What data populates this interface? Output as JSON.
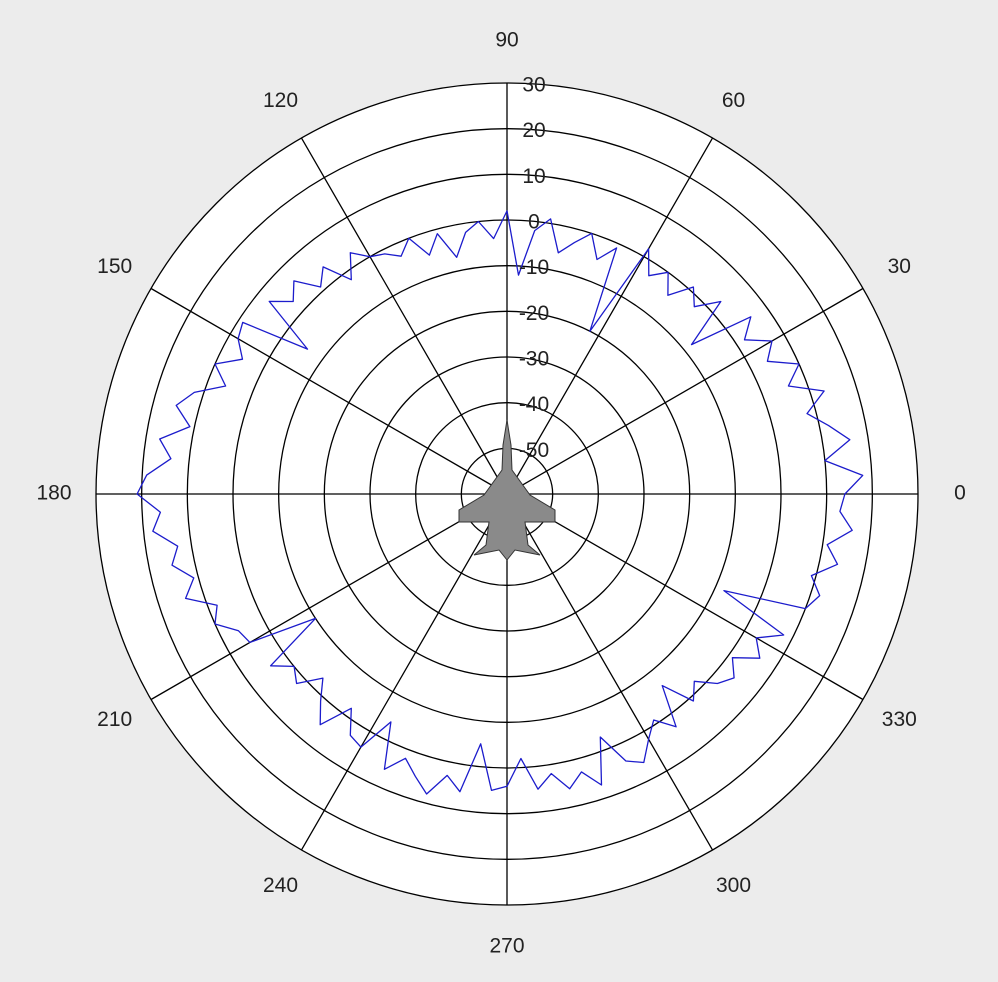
{
  "chart_data": {
    "type": "polar",
    "ylim": [
      -60,
      30
    ],
    "yticks": [
      -50,
      -40,
      -30,
      -20,
      -10,
      0,
      10,
      20,
      30
    ],
    "thetaticks": [
      0,
      30,
      60,
      90,
      120,
      150,
      180,
      210,
      240,
      270,
      300,
      330
    ],
    "grid": true,
    "series": [
      {
        "color": "#1c1ccc",
        "x": [
          0,
          3,
          6,
          9,
          12,
          15,
          18,
          21,
          24,
          27,
          30,
          33,
          36,
          39,
          42,
          45,
          48,
          51,
          54,
          57,
          60,
          63,
          66,
          69,
          72,
          75,
          78,
          81,
          84,
          87,
          90,
          93,
          96,
          99,
          102,
          105,
          108,
          111,
          114,
          117,
          120,
          123,
          126,
          129,
          132,
          135,
          138,
          141,
          144,
          147,
          150,
          153,
          156,
          159,
          162,
          165,
          168,
          171,
          174,
          177,
          180,
          183,
          186,
          189,
          192,
          195,
          198,
          201,
          204,
          207,
          210,
          213,
          216,
          219,
          222,
          225,
          228,
          231,
          234,
          237,
          240,
          243,
          246,
          249,
          252,
          255,
          258,
          261,
          264,
          267,
          270,
          273,
          276,
          279,
          282,
          285,
          288,
          291,
          294,
          297,
          300,
          303,
          306,
          309,
          312,
          315,
          318,
          321,
          324,
          327,
          330,
          333,
          336,
          339,
          342,
          345,
          348,
          351,
          354,
          357
        ],
        "values": [
          14,
          18,
          10,
          16,
          12,
          8,
          13,
          6,
          10,
          4,
          7,
          2,
          6,
          -8,
          3,
          -2,
          1,
          -4,
          0,
          -3,
          2,
          -20,
          -1,
          -5,
          0,
          -3,
          -6,
          1,
          -2,
          -12,
          2,
          -4,
          0,
          -2,
          -7,
          -1,
          -5,
          0,
          -3,
          -1,
          0,
          3,
          -2,
          4,
          1,
          6,
          3,
          7,
          -6,
          9,
          8,
          5,
          10,
          6,
          12,
          15,
          11,
          17,
          14,
          19,
          21,
          16,
          18,
          13,
          15,
          11,
          14,
          8,
          10,
          6,
          5,
          -10,
          4,
          0,
          2,
          -3,
          1,
          5,
          -2,
          3,
          4,
          -4,
          6,
          2,
          5,
          8,
          3,
          6,
          -5,
          5,
          4,
          -2,
          5,
          2,
          6,
          3,
          7,
          -3,
          4,
          6,
          2,
          -1,
          3,
          -6,
          1,
          -2,
          2,
          4,
          1,
          6,
          3,
          8,
          -8,
          10,
          12,
          9,
          14,
          11,
          16,
          13
        ]
      }
    ]
  }
}
